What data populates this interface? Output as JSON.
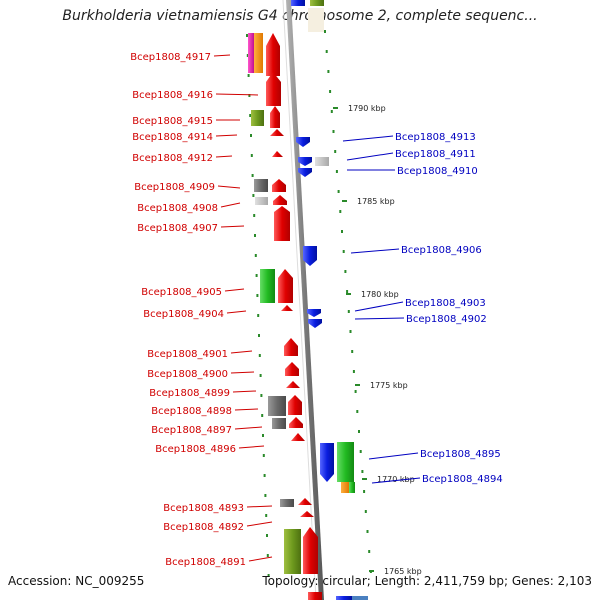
{
  "title": "Burkholderia vietnamiensis G4 chromosome 2, complete sequenc...",
  "footer": {
    "accession": "Accession: NC_009255",
    "summary": "Topology: circular; Length: 2,411,759 bp; Genes: 2,103"
  },
  "colors": {
    "forward_label": "#d00000",
    "reverse_label": "#0000c0",
    "forward_gene": "#ee1111",
    "reverse_gene": "#1122ee",
    "backbone": "#888888",
    "tick": "#2a8a2a"
  },
  "ruler": [
    {
      "label": "1790 kbp"
    },
    {
      "label": "1785 kbp"
    },
    {
      "label": "1780 kbp"
    },
    {
      "label": "1775 kbp"
    },
    {
      "label": "1770 kbp"
    },
    {
      "label": "1765 kbp"
    }
  ],
  "genes_left": [
    {
      "label": "Bcep1808_4917"
    },
    {
      "label": "Bcep1808_4916"
    },
    {
      "label": "Bcep1808_4915"
    },
    {
      "label": "Bcep1808_4914"
    },
    {
      "label": "Bcep1808_4912"
    },
    {
      "label": "Bcep1808_4909"
    },
    {
      "label": "Bcep1808_4908"
    },
    {
      "label": "Bcep1808_4907"
    },
    {
      "label": "Bcep1808_4905"
    },
    {
      "label": "Bcep1808_4904"
    },
    {
      "label": "Bcep1808_4901"
    },
    {
      "label": "Bcep1808_4900"
    },
    {
      "label": "Bcep1808_4899"
    },
    {
      "label": "Bcep1808_4898"
    },
    {
      "label": "Bcep1808_4897"
    },
    {
      "label": "Bcep1808_4896"
    },
    {
      "label": "Bcep1808_4893"
    },
    {
      "label": "Bcep1808_4892"
    },
    {
      "label": "Bcep1808_4891"
    }
  ],
  "genes_right": [
    {
      "label": "Bcep1808_4913"
    },
    {
      "label": "Bcep1808_4911"
    },
    {
      "label": "Bcep1808_4910"
    },
    {
      "label": "Bcep1808_4906"
    },
    {
      "label": "Bcep1808_4903"
    },
    {
      "label": "Bcep1808_4902"
    },
    {
      "label": "Bcep1808_4895"
    },
    {
      "label": "Bcep1808_4894"
    }
  ]
}
